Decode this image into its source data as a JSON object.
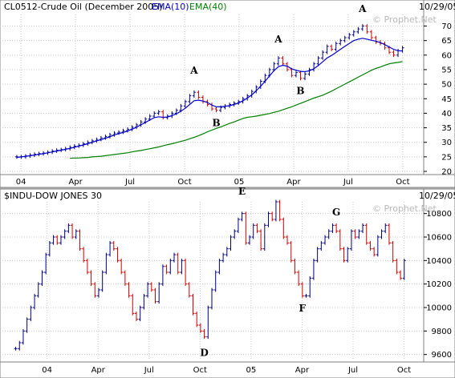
{
  "chart_data": [
    {
      "type": "ohlc",
      "title": "CL0512-Crude Oil (December 2005)",
      "date": "10/29/05",
      "watermark": "© Prophet.Net",
      "legend": [
        {
          "label": "EMA(10)",
          "color": "#0000cc"
        },
        {
          "label": "EMA(40)",
          "color": "#008000"
        }
      ],
      "ylim": [
        20,
        74
      ],
      "yticks": [
        20,
        25,
        30,
        35,
        40,
        45,
        50,
        55,
        60,
        65,
        70
      ],
      "xticks": [
        {
          "label": "04",
          "t": 0
        },
        {
          "label": "Apr",
          "t": 13
        },
        {
          "label": "Jul",
          "t": 26
        },
        {
          "label": "Oct",
          "t": 39
        },
        {
          "label": "05",
          "t": 52
        },
        {
          "label": "Apr",
          "t": 65
        },
        {
          "label": "Jul",
          "t": 78
        },
        {
          "label": "Oct",
          "t": 91
        }
      ],
      "t_range": [
        -5,
        96
      ],
      "closes": [
        25,
        25,
        25.3,
        25.6,
        25.9,
        26.1,
        26.3,
        26.6,
        27,
        27.3,
        27.5,
        27.8,
        28.3,
        28.7,
        29,
        29.5,
        30,
        30.5,
        31,
        31.5,
        32,
        32.6,
        33.2,
        33.5,
        34,
        34.5,
        35.2,
        36,
        37,
        38,
        39,
        40,
        40.5,
        38.5,
        39,
        40,
        41,
        42.5,
        44,
        46,
        47.2,
        45.5,
        44,
        43,
        41.5,
        41,
        42,
        42.5,
        43,
        43.5,
        44,
        45,
        46,
        47.5,
        49,
        51,
        53,
        55,
        57,
        59,
        57,
        55,
        53,
        54,
        52,
        53.5,
        55,
        57,
        59,
        61,
        63,
        62,
        64,
        65,
        66,
        67,
        68,
        69,
        70,
        68,
        66,
        64.5,
        64,
        62.5,
        61,
        60,
        61.5,
        62.5
      ],
      "ema_fast": [
        24.8,
        25,
        25.2,
        25.4,
        25.6,
        25.9,
        26.1,
        26.4,
        26.7,
        27,
        27.3,
        27.6,
        27.9,
        28.3,
        28.7,
        29.1,
        29.5,
        30,
        30.5,
        30.9,
        31.4,
        31.9,
        32.5,
        33,
        33.4,
        33.9,
        34.5,
        35.2,
        36,
        36.8,
        37.7,
        38.5,
        38.8,
        38.6,
        38.7,
        39.2,
        39.8,
        40.7,
        41.7,
        43,
        44.3,
        44.5,
        44.2,
        43.7,
        42.8,
        42.2,
        42.2,
        42.4,
        42.6,
        43,
        43.5,
        44.3,
        45.2,
        46.3,
        47.7,
        49.3,
        51,
        52.8,
        54.6,
        56,
        56.5,
        56.2,
        55.3,
        54.8,
        54.4,
        54.3,
        54.6,
        55.3,
        56.4,
        57.7,
        59,
        59.9,
        60.9,
        62,
        63,
        64,
        65,
        65.5,
        65.8,
        65.5,
        65.1,
        64.8,
        64.3,
        63.6,
        62.8,
        62,
        61.5,
        61.4
      ],
      "ema_slow": [
        24.5,
        24.6,
        24.6,
        24.7,
        24.8,
        25,
        25.1,
        25.2,
        25.4,
        25.6,
        25.8,
        26,
        26.2,
        26.4,
        26.7,
        27,
        27.2,
        27.5,
        27.8,
        28.1,
        28.4,
        28.8,
        29.2,
        29.5,
        29.9,
        30.3,
        30.7,
        31.2,
        31.7,
        32.3,
        32.9,
        33.6,
        34.2,
        34.8,
        35.3,
        35.9,
        36.5,
        37,
        37.6,
        38.2,
        38.6,
        38.8,
        39,
        39.3,
        39.6,
        39.9,
        40.3,
        40.7,
        41.2,
        41.7,
        42.2,
        42.8,
        43.4,
        44,
        44.6,
        45.2,
        45.7,
        46.2,
        46.9,
        47.6,
        48.4,
        49.2,
        50,
        50.8,
        51.6,
        52.4,
        53.2,
        54,
        54.8,
        55.4,
        55.9,
        56.5,
        57,
        57.3,
        57.5,
        57.8
      ]
    },
    {
      "type": "ohlc",
      "title": "$INDU-DOW JONES 30",
      "date": "10/29/05",
      "watermark": "© Prophet.Net",
      "ylim": [
        9550,
        10900
      ],
      "yticks": [
        9600,
        9800,
        10000,
        10200,
        10400,
        10600,
        10800
      ],
      "xticks": [
        {
          "label": "04",
          "t": 0
        },
        {
          "label": "Apr",
          "t": 13
        },
        {
          "label": "Jul",
          "t": 26
        },
        {
          "label": "Oct",
          "t": 39
        },
        {
          "label": "05",
          "t": 52
        },
        {
          "label": "Apr",
          "t": 65
        },
        {
          "label": "Jul",
          "t": 78
        },
        {
          "label": "Oct",
          "t": 91
        }
      ],
      "t_range": [
        -12,
        96
      ],
      "closes": [
        9650,
        9700,
        9800,
        9900,
        10000,
        10100,
        10200,
        10300,
        10450,
        10550,
        10600,
        10550,
        10600,
        10650,
        10700,
        10600,
        10650,
        10500,
        10400,
        10300,
        10200,
        10100,
        10150,
        10300,
        10450,
        10550,
        10500,
        10400,
        10300,
        10200,
        10100,
        9950,
        9900,
        10000,
        10100,
        10200,
        10150,
        10050,
        10200,
        10350,
        10300,
        10400,
        10450,
        10300,
        10400,
        10200,
        10100,
        9950,
        9850,
        9800,
        9750,
        10000,
        10150,
        10300,
        10400,
        10450,
        10500,
        10600,
        10650,
        10750,
        10800,
        10550,
        10600,
        10700,
        10650,
        10500,
        10700,
        10800,
        10750,
        10900,
        10750,
        10600,
        10550,
        10400,
        10300,
        10200,
        10100,
        10100,
        10250,
        10400,
        10500,
        10550,
        10600,
        10650,
        10700,
        10650,
        10500,
        10400,
        10500,
        10650,
        10600,
        10650,
        10700,
        10550,
        10500,
        10450,
        10600,
        10650,
        10700,
        10550,
        10400,
        10300,
        10250,
        10400
      ]
    }
  ],
  "annotations_top": [
    "A",
    "B",
    "A",
    "B",
    "A"
  ],
  "annotations_bottom": [
    "D",
    "E",
    "F",
    "G"
  ]
}
